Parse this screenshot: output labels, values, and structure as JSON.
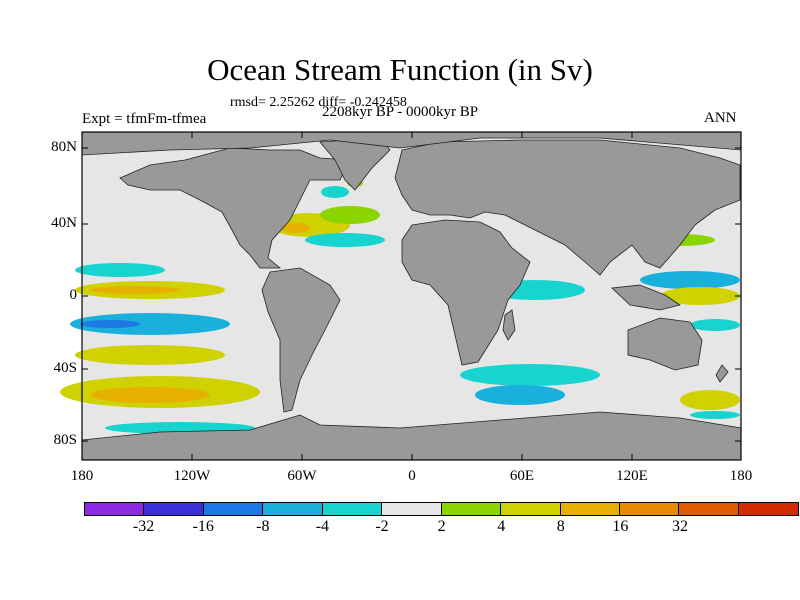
{
  "title": "Ocean Stream Function (in Sv)",
  "stats": "rmsd= 2.25262 diff= -0.242458",
  "experiment": "Expt = tfmFm-tfmea",
  "period": "2208kyr BP - 0000kyr BP",
  "season": "ANN",
  "lat_ticks": [
    "80N",
    "40N",
    "0",
    "40S",
    "80S"
  ],
  "lon_ticks": [
    "180",
    "120W",
    "60W",
    "0",
    "60E",
    "120E",
    "180"
  ],
  "colorbar": {
    "labels": [
      "-32",
      "-16",
      "-8",
      "-4",
      "-2",
      "2",
      "4",
      "8",
      "16",
      "32"
    ],
    "colors": [
      "#8a2be2",
      "#3a2fd9",
      "#1e78e6",
      "#19b0de",
      "#17d4cf",
      "#e6e6e6",
      "#8cd400",
      "#cfd200",
      "#e6b000",
      "#e68a00",
      "#e05a00",
      "#d42a00"
    ]
  },
  "map_colors": {
    "land": "#999999",
    "ocean": "#e6e6e6"
  }
}
